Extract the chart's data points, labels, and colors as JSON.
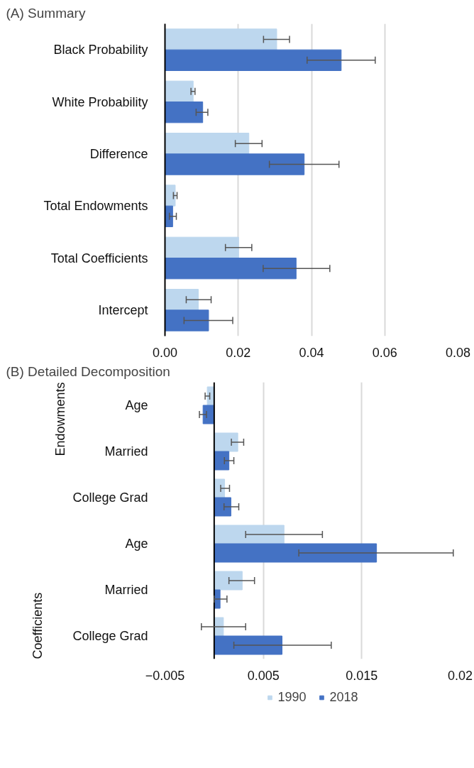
{
  "chart_data": [
    {
      "type": "bar",
      "orientation": "horizontal",
      "title": "(A)   Summary",
      "categories": [
        "Black Probability",
        "White Probability",
        "Difference",
        "Total Endowments",
        "Total Coefficients",
        "Intercept"
      ],
      "series": [
        {
          "color": "#bdd7ee",
          "values": [
            0.0305,
            0.0077,
            0.0229,
            0.0028,
            0.0201,
            0.0091
          ],
          "errors": [
            [
              0.0269,
              0.034
            ],
            [
              0.0071,
              0.0082
            ],
            [
              0.0192,
              0.0265
            ],
            [
              0.0023,
              0.0033
            ],
            [
              0.0165,
              0.0237
            ],
            [
              0.0058,
              0.0126
            ]
          ]
        },
        {
          "color": "#4472c4",
          "values": [
            0.0481,
            0.0103,
            0.038,
            0.0021,
            0.0358,
            0.0119
          ],
          "errors": [
            [
              0.0388,
              0.0574
            ],
            [
              0.0085,
              0.0117
            ],
            [
              0.0285,
              0.0475
            ],
            [
              0.0012,
              0.0031
            ],
            [
              0.0268,
              0.045
            ],
            [
              0.0052,
              0.0185
            ]
          ]
        }
      ],
      "xlim": [
        0,
        0.08
      ],
      "xticks": [
        {
          "value": 0,
          "label": "0.00"
        },
        {
          "value": 0.02,
          "label": "0.02"
        },
        {
          "value": 0.04,
          "label": "0.04"
        },
        {
          "value": 0.06,
          "label": "0.06"
        },
        {
          "value": 0.08,
          "label": "0.08"
        }
      ],
      "grid": "x"
    },
    {
      "type": "bar",
      "orientation": "horizontal",
      "title": "(B)   Detailed Decomposition",
      "categories": [
        "Age",
        "Married",
        "College Grad",
        "Age",
        "Married",
        "College Grad"
      ],
      "annotations": [
        "Endowments",
        "Coefficients"
      ],
      "series": [
        {
          "name": "1990",
          "color": "#bdd7ee",
          "values": [
            -0.0007,
            0.0024,
            0.00106,
            0.0071,
            0.00285,
            0.00094
          ],
          "errors": [
            [
              -0.00092,
              -0.00045
            ],
            [
              0.00175,
              0.003
            ],
            [
              0.00066,
              0.00156
            ],
            [
              0.0032,
              0.011
            ],
            [
              0.0015,
              0.0041
            ],
            [
              -0.0013,
              0.0032
            ]
          ]
        },
        {
          "name": "2018",
          "color": "#4472c4",
          "values": [
            -0.00113,
            0.0015,
            0.0017,
            0.0165,
            0.0006,
            0.0069
          ],
          "errors": [
            [
              -0.0015,
              -0.00078
            ],
            [
              0.00104,
              0.002
            ],
            [
              0.001,
              0.0025
            ],
            [
              0.0086,
              0.0243
            ],
            [
              0.0,
              0.0013
            ],
            [
              0.002,
              0.0119
            ]
          ]
        }
      ],
      "xlim": [
        -0.005,
        0.025
      ],
      "xticks": [
        -0.005,
        0.005,
        0.015,
        {
          "value": 0.025,
          "label": "0.02"
        }
      ],
      "ref_lines": [
        {
          "axis": "x",
          "value": 0,
          "color": "#000000"
        }
      ],
      "grid": "x",
      "legend": "bottom"
    }
  ]
}
